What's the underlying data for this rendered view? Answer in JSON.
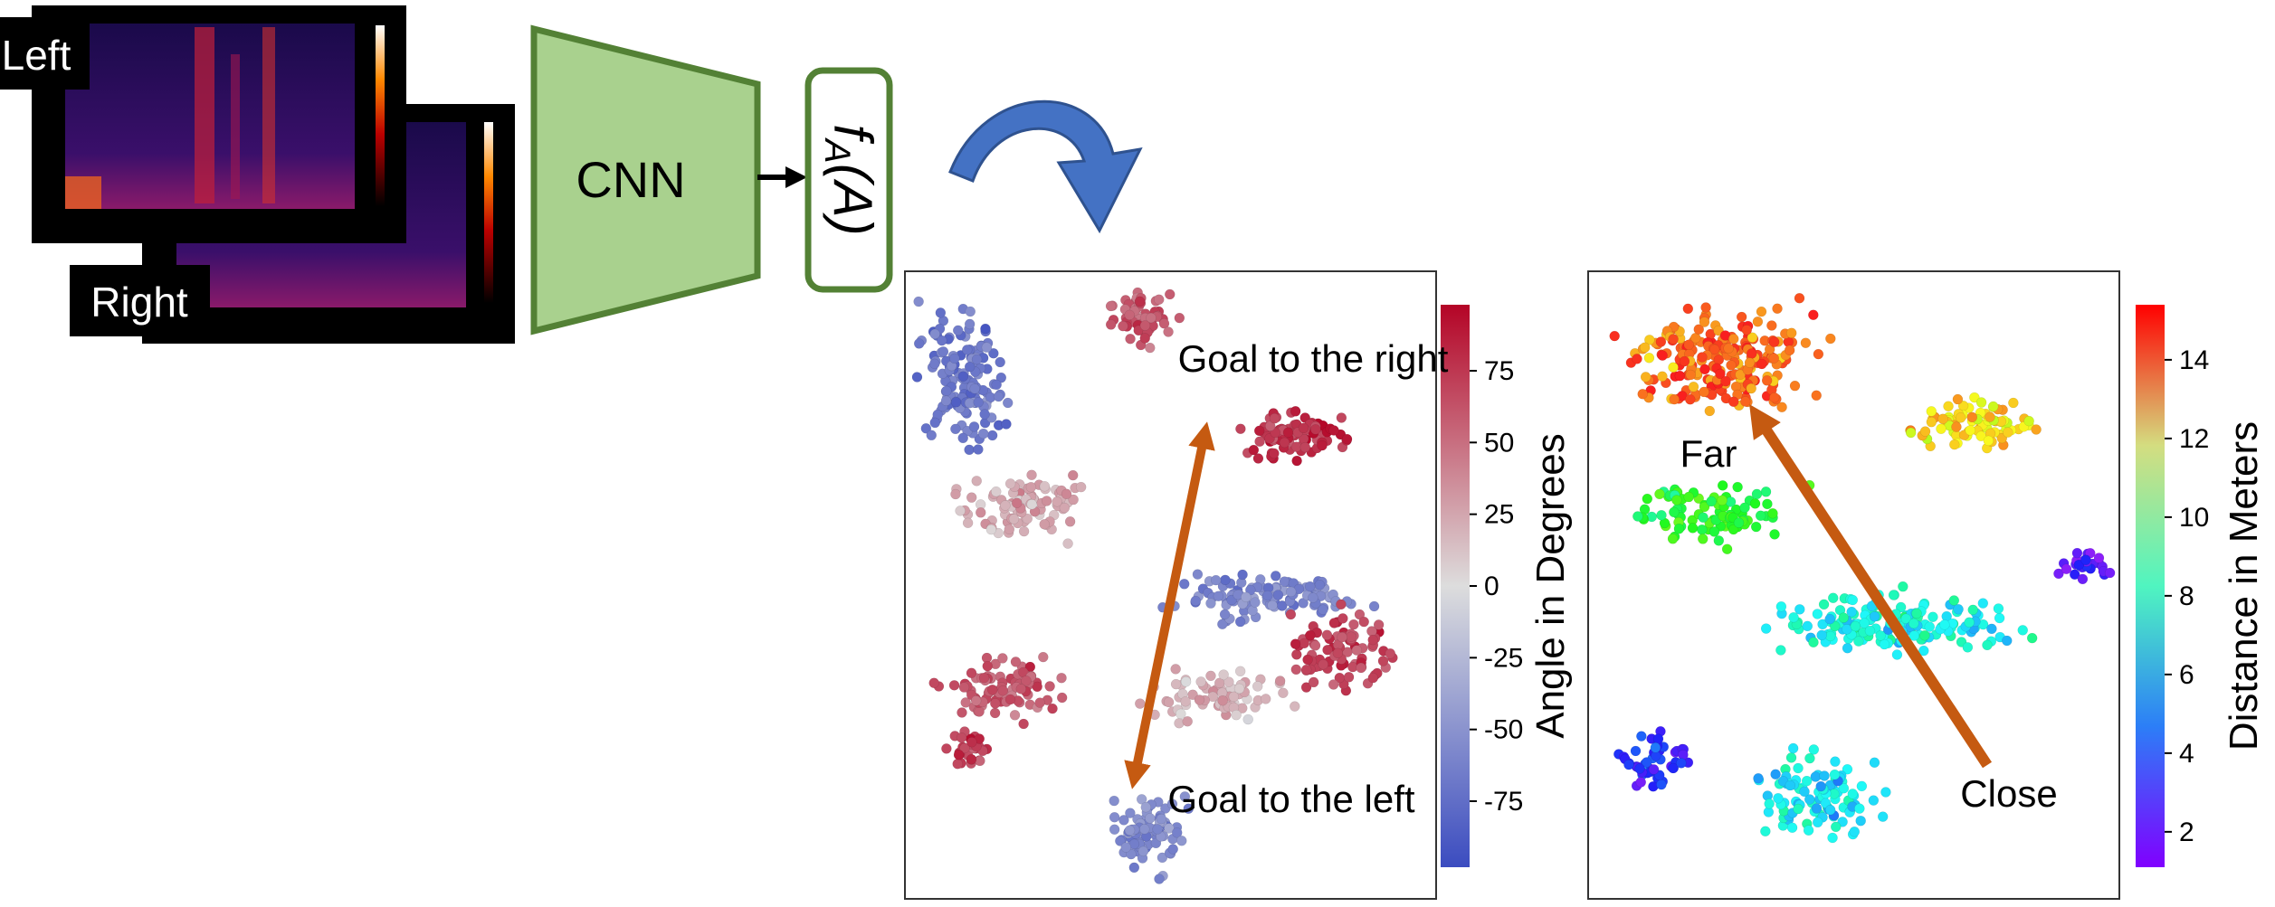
{
  "left_label": "Left",
  "right_label": "Right",
  "encoder": "CNN",
  "embedding": {
    "function": "f",
    "subscript": "A",
    "argument": "(A)"
  },
  "angle_plot": {
    "annotations": [
      "Goal to the right",
      "Goal to the left"
    ],
    "colorbar": {
      "label": "Angle in Degrees",
      "lim": [
        -98,
        98
      ],
      "ticks": [
        75,
        50,
        25,
        0,
        -25,
        -50,
        -75
      ]
    }
  },
  "distance_plot": {
    "annotations": [
      "Far",
      "Close"
    ],
    "colorbar": {
      "label": "Distance in Meters",
      "lim": [
        1.1,
        15.4
      ],
      "ticks": [
        14,
        12,
        10,
        8,
        6,
        4,
        2
      ]
    }
  }
}
